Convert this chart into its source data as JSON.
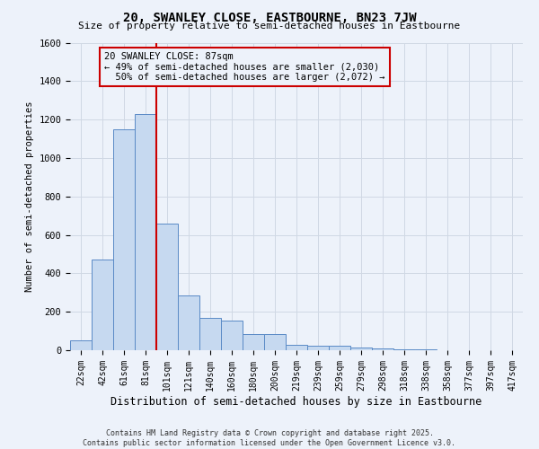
{
  "title1": "20, SWANLEY CLOSE, EASTBOURNE, BN23 7JW",
  "title2": "Size of property relative to semi-detached houses in Eastbourne",
  "xlabel": "Distribution of semi-detached houses by size in Eastbourne",
  "ylabel": "Number of semi-detached properties",
  "categories": [
    "22sqm",
    "42sqm",
    "61sqm",
    "81sqm",
    "101sqm",
    "121sqm",
    "140sqm",
    "160sqm",
    "180sqm",
    "200sqm",
    "219sqm",
    "239sqm",
    "259sqm",
    "279sqm",
    "298sqm",
    "318sqm",
    "338sqm",
    "358sqm",
    "377sqm",
    "397sqm",
    "417sqm"
  ],
  "values": [
    50,
    470,
    1150,
    1230,
    660,
    285,
    170,
    155,
    85,
    85,
    30,
    25,
    22,
    12,
    8,
    5,
    3,
    2,
    1,
    1,
    1
  ],
  "bar_color": "#c6d9f0",
  "bar_edge_color": "#5a8ac6",
  "property_line_x": 3.5,
  "property_sqm": 87,
  "pct_smaller": 49,
  "count_smaller": 2030,
  "pct_larger": 50,
  "count_larger": 2072,
  "annotation_box_color": "#cc0000",
  "grid_color": "#d0d8e4",
  "background_color": "#edf2fa",
  "ylim": [
    0,
    1600
  ],
  "yticks": [
    0,
    200,
    400,
    600,
    800,
    1000,
    1200,
    1400,
    1600
  ],
  "footer": "Contains HM Land Registry data © Crown copyright and database right 2025.\nContains public sector information licensed under the Open Government Licence v3.0."
}
